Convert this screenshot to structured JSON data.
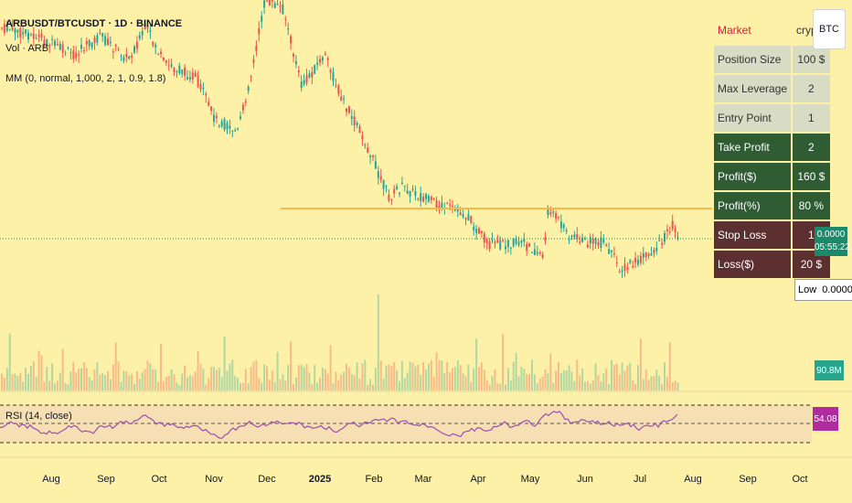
{
  "legend": {
    "title": "ARBUSDT/BTCUSDT · 1D · BINANCE",
    "volume": "Vol · ARB",
    "indicator": "MM (0, normal, 1,000, 2, 1, 0.9, 1.8)"
  },
  "rsi_label": "RSI (14, close)",
  "btc_button": "BTC",
  "table": [
    {
      "key": "Market",
      "value": "crypto",
      "style": "mkt"
    },
    {
      "key": "Position Size",
      "value": "100 $",
      "style": "g"
    },
    {
      "key": "Max Leverage",
      "value": "2",
      "style": "g"
    },
    {
      "key": "Entry Point",
      "value": "1",
      "style": "g"
    },
    {
      "key": "Take Profit",
      "value": "2",
      "style": "gr"
    },
    {
      "key": "Profit($)",
      "value": "160 $",
      "style": "gr"
    },
    {
      "key": "Profit(%)",
      "value": "80 %",
      "style": "gr"
    },
    {
      "key": "Stop Loss",
      "value": "1",
      "style": "rd"
    },
    {
      "key": "Loss($)",
      "value": "20 $",
      "style": "rd"
    }
  ],
  "price_tag": {
    "price": "0.0000",
    "countdown": "05:55:22"
  },
  "low_tag": {
    "label": "Low",
    "value": "0.0000"
  },
  "volume_tag": "90.8M",
  "rsi_tag": "54.08",
  "months": [
    {
      "label": "Aug",
      "bold": false
    },
    {
      "label": "Sep",
      "bold": false
    },
    {
      "label": "Oct",
      "bold": false
    },
    {
      "label": "Nov",
      "bold": false
    },
    {
      "label": "Dec",
      "bold": false
    },
    {
      "label": "2025",
      "bold": true
    },
    {
      "label": "Feb",
      "bold": false
    },
    {
      "label": "Mar",
      "bold": false
    },
    {
      "label": "Apr",
      "bold": false
    },
    {
      "label": "May",
      "bold": false
    },
    {
      "label": "Jun",
      "bold": false
    },
    {
      "label": "Jul",
      "bold": false
    },
    {
      "label": "Aug",
      "bold": false
    },
    {
      "label": "Sep",
      "bold": false
    },
    {
      "label": "Oct",
      "bold": false
    }
  ],
  "colors": {
    "background": "#fdf1a8",
    "up": "#26a69a",
    "down": "#ef5350",
    "take_profit_line": "#f5b84b",
    "rsi_line": "#9c4fb0",
    "rsi_band": "#f6dfb2"
  }
}
